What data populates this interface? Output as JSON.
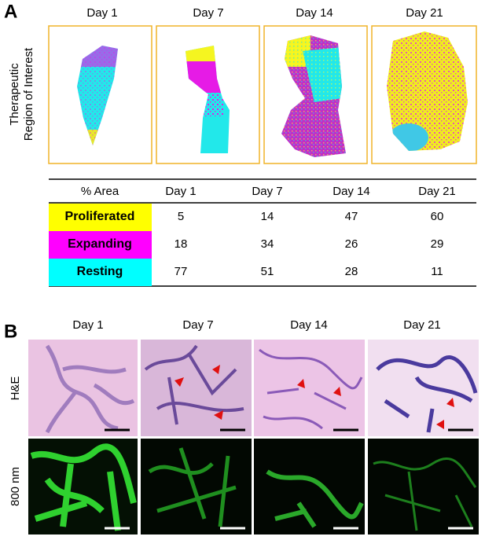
{
  "panel_a": {
    "label": "A",
    "y_label": [
      "Therapeutic",
      "Region of Interest"
    ],
    "days": [
      "Day 1",
      "Day 7",
      "Day 14",
      "Day 21"
    ]
  },
  "table": {
    "header": [
      "% Area",
      "Day 1",
      "Day 7",
      "Day 14",
      "Day 21"
    ],
    "rows": [
      [
        "Proliferated",
        5,
        14,
        47,
        60
      ],
      [
        "Expanding",
        18,
        34,
        26,
        29
      ],
      [
        "Resting",
        77,
        51,
        28,
        11
      ]
    ]
  },
  "panel_b": {
    "label": "B",
    "days": [
      "Day 1",
      "Day 7",
      "Day 14",
      "Day 21"
    ],
    "row_labels": [
      "H&E",
      "800 nm"
    ]
  }
}
